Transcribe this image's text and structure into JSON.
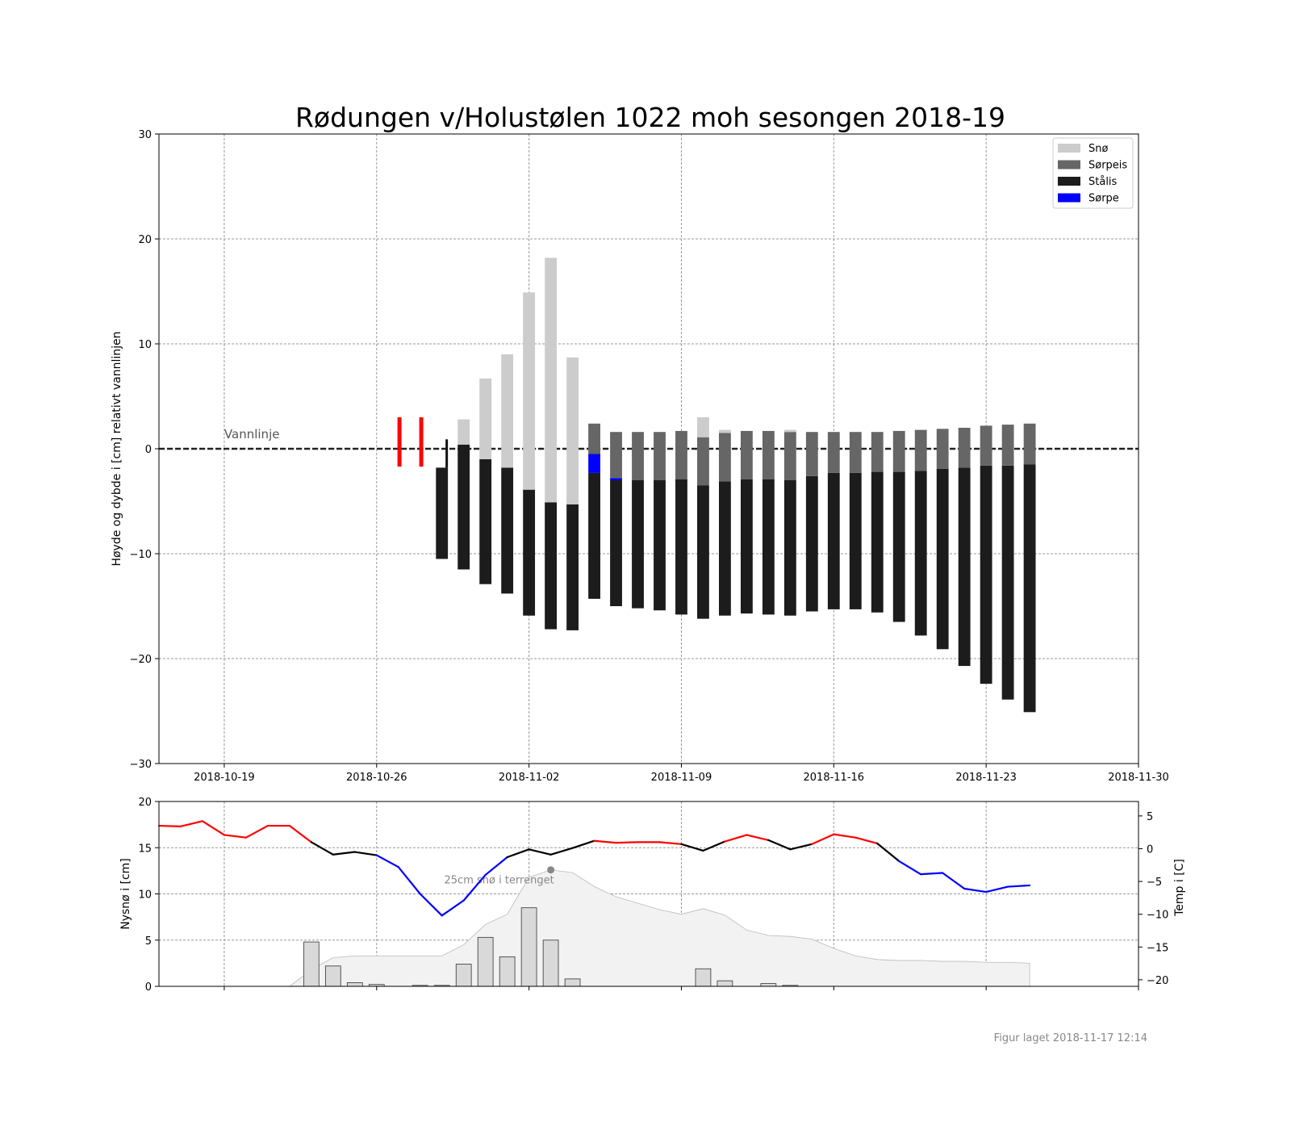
{
  "figure": {
    "title": "Rødungen v/Holustølen 1022 moh sesongen 2018-19",
    "footer": "Figur laget 2018-11-17 12:14"
  },
  "chart_data": [
    {
      "type": "bar",
      "panel": "ice",
      "ylabel": "Høyde og dybde i [cm] relativt vannlinjen",
      "ylim": [
        -30,
        30
      ],
      "yticks": [
        -30,
        -20,
        -10,
        0,
        10,
        20,
        30
      ],
      "xlim": [
        "2018-10-16",
        "2018-11-30"
      ],
      "xticks": [
        "2018-10-19",
        "2018-10-26",
        "2018-11-02",
        "2018-11-09",
        "2018-11-16",
        "2018-11-23",
        "2018-11-30"
      ],
      "grid": true,
      "legend_position": "top-right",
      "waterline_label": "Vannlinje",
      "colors": {
        "sno": "#cccccc",
        "sorpeis": "#666666",
        "stalis": "#1c1c1c",
        "sorpe": "#0000ff",
        "open_water": "#ff0000"
      },
      "legend": [
        {
          "key": "sno",
          "label": "Snø"
        },
        {
          "key": "sorpeis",
          "label": "Sørpeis"
        },
        {
          "key": "stalis",
          "label": "Stålis"
        },
        {
          "key": "sorpe",
          "label": "Sørpe"
        }
      ],
      "open_water_markers": [
        {
          "date": "2018-10-28",
          "top": 3,
          "bottom": -1.7
        },
        {
          "date": "2018-10-29",
          "top": 3,
          "bottom": -1.7
        }
      ],
      "thin_ice_markers": [
        {
          "date": "2018-10-29",
          "top": 0.9,
          "bottom": -1.8
        }
      ],
      "columns": [
        {
          "date": "2018-10-29",
          "stalis": [
            -10.5,
            -1.8
          ],
          "sorpeis": null,
          "sno": null,
          "sorpe": null
        },
        {
          "date": "2018-10-30",
          "stalis": [
            -11.5,
            0.4
          ],
          "sorpeis": null,
          "sno": [
            0.4,
            2.8
          ],
          "sorpe": null
        },
        {
          "date": "2018-10-31",
          "stalis": [
            -12.9,
            -1.0
          ],
          "sorpeis": null,
          "sno": [
            -1.0,
            6.7
          ],
          "sorpe": null
        },
        {
          "date": "2018-11-01",
          "stalis": [
            -13.8,
            -1.8
          ],
          "sorpeis": null,
          "sno": [
            -1.8,
            9.0
          ],
          "sorpe": null
        },
        {
          "date": "2018-11-02",
          "stalis": [
            -15.9,
            -3.9
          ],
          "sorpeis": null,
          "sno": [
            -3.9,
            14.9
          ],
          "sorpe": null
        },
        {
          "date": "2018-11-03",
          "stalis": [
            -17.2,
            -5.1
          ],
          "sorpeis": null,
          "sno": [
            -5.1,
            18.2
          ],
          "sorpe": null
        },
        {
          "date": "2018-11-04",
          "stalis": [
            -17.3,
            -5.3
          ],
          "sorpeis": null,
          "sno": [
            -5.3,
            8.7
          ],
          "sorpe": null
        },
        {
          "date": "2018-11-05",
          "stalis": [
            -14.3,
            -2.3
          ],
          "sorpeis": [
            -0.5,
            2.4
          ],
          "sno": null,
          "sorpe": [
            -2.3,
            -0.5
          ]
        },
        {
          "date": "2018-11-06",
          "stalis": [
            -15.0,
            -3.0
          ],
          "sorpeis": [
            -2.8,
            1.6
          ],
          "sno": null,
          "sorpe": [
            -3.0,
            -2.8
          ]
        },
        {
          "date": "2018-11-07",
          "stalis": [
            -15.2,
            -3.0
          ],
          "sorpeis": [
            -3.0,
            1.6
          ],
          "sno": null,
          "sorpe": null
        },
        {
          "date": "2018-11-08",
          "stalis": [
            -15.4,
            -3.0
          ],
          "sorpeis": [
            -3.0,
            1.6
          ],
          "sno": null,
          "sorpe": null
        },
        {
          "date": "2018-11-09",
          "stalis": [
            -15.8,
            -2.9
          ],
          "sorpeis": [
            -2.9,
            1.7
          ],
          "sno": null,
          "sorpe": null
        },
        {
          "date": "2018-11-10",
          "stalis": [
            -16.2,
            -3.5
          ],
          "sorpeis": [
            -3.5,
            1.1
          ],
          "sno": [
            1.1,
            3.0
          ],
          "sorpe": null
        },
        {
          "date": "2018-11-11",
          "stalis": [
            -15.9,
            -3.1
          ],
          "sorpeis": [
            -3.1,
            1.5
          ],
          "sno": [
            1.5,
            1.8
          ],
          "sorpe": null
        },
        {
          "date": "2018-11-12",
          "stalis": [
            -15.7,
            -2.9
          ],
          "sorpeis": [
            -2.9,
            1.7
          ],
          "sno": null,
          "sorpe": null
        },
        {
          "date": "2018-11-13",
          "stalis": [
            -15.8,
            -2.9
          ],
          "sorpeis": [
            -2.9,
            1.7
          ],
          "sno": null,
          "sorpe": null
        },
        {
          "date": "2018-11-14",
          "stalis": [
            -15.9,
            -3.0
          ],
          "sorpeis": [
            -3.0,
            1.6
          ],
          "sno": [
            1.6,
            1.8
          ],
          "sorpe": null
        },
        {
          "date": "2018-11-15",
          "stalis": [
            -15.5,
            -2.6
          ],
          "sorpeis": [
            -2.6,
            1.6
          ],
          "sno": null,
          "sorpe": null
        },
        {
          "date": "2018-11-16",
          "stalis": [
            -15.3,
            -2.3
          ],
          "sorpeis": [
            -2.3,
            1.6
          ],
          "sno": null,
          "sorpe": null
        },
        {
          "date": "2018-11-17",
          "stalis": [
            -15.3,
            -2.3
          ],
          "sorpeis": [
            -2.3,
            1.6
          ],
          "sno": null,
          "sorpe": null
        },
        {
          "date": "2018-11-18",
          "stalis": [
            -15.6,
            -2.2
          ],
          "sorpeis": [
            -2.2,
            1.6
          ],
          "sno": null,
          "sorpe": null
        },
        {
          "date": "2018-11-19",
          "stalis": [
            -16.5,
            -2.2
          ],
          "sorpeis": [
            -2.2,
            1.7
          ],
          "sno": null,
          "sorpe": null
        },
        {
          "date": "2018-11-20",
          "stalis": [
            -17.8,
            -2.1
          ],
          "sorpeis": [
            -2.1,
            1.8
          ],
          "sno": null,
          "sorpe": null
        },
        {
          "date": "2018-11-21",
          "stalis": [
            -19.1,
            -1.9
          ],
          "sorpeis": [
            -1.9,
            1.9
          ],
          "sno": null,
          "sorpe": null
        },
        {
          "date": "2018-11-22",
          "stalis": [
            -20.7,
            -1.8
          ],
          "sorpeis": [
            -1.8,
            2.0
          ],
          "sno": null,
          "sorpe": null
        },
        {
          "date": "2018-11-23",
          "stalis": [
            -22.4,
            -1.6
          ],
          "sorpeis": [
            -1.6,
            2.2
          ],
          "sno": null,
          "sorpe": null
        },
        {
          "date": "2018-11-24",
          "stalis": [
            -23.9,
            -1.6
          ],
          "sorpeis": [
            -1.6,
            2.3
          ],
          "sno": null,
          "sorpe": null
        },
        {
          "date": "2018-11-25",
          "stalis": [
            -25.1,
            -1.5
          ],
          "sorpeis": [
            -1.5,
            2.4
          ],
          "sno": null,
          "sorpe": null
        }
      ]
    },
    {
      "type": "bar",
      "panel": "weather",
      "ylabel_left": "Nysnø i [cm]",
      "ylabel_right": "Temp i [C]",
      "ylim_left": [
        0,
        20
      ],
      "yticks_left": [
        0,
        5,
        10,
        15,
        20
      ],
      "ylim_right": [
        -21,
        7.2
      ],
      "yticks_right": [
        -20,
        -15,
        -10,
        -5,
        0,
        5
      ],
      "xlim": [
        "2018-10-16",
        "2018-11-30"
      ],
      "grid": true,
      "annotation": {
        "text": "25cm snø i terrenget",
        "date": "2018-11-03",
        "value": 12.6
      },
      "new_snow": [
        {
          "date": "2018-10-23",
          "value": 4.8
        },
        {
          "date": "2018-10-24",
          "value": 2.2
        },
        {
          "date": "2018-10-25",
          "value": 0.4
        },
        {
          "date": "2018-10-26",
          "value": 0.2
        },
        {
          "date": "2018-10-28",
          "value": 0.1
        },
        {
          "date": "2018-10-29",
          "value": 0.1
        },
        {
          "date": "2018-10-30",
          "value": 2.4
        },
        {
          "date": "2018-10-31",
          "value": 5.3
        },
        {
          "date": "2018-11-01",
          "value": 3.2
        },
        {
          "date": "2018-11-02",
          "value": 8.5
        },
        {
          "date": "2018-11-03",
          "value": 5.0
        },
        {
          "date": "2018-11-04",
          "value": 0.8
        },
        {
          "date": "2018-11-10",
          "value": 1.9
        },
        {
          "date": "2018-11-11",
          "value": 0.6
        },
        {
          "date": "2018-11-13",
          "value": 0.3
        },
        {
          "date": "2018-11-14",
          "value": 0.1
        }
      ],
      "snow_depth": {
        "dates": [
          "2018-10-22",
          "2018-10-23",
          "2018-10-24",
          "2018-10-25",
          "2018-10-26",
          "2018-10-27",
          "2018-10-28",
          "2018-10-29",
          "2018-10-30",
          "2018-10-31",
          "2018-11-01",
          "2018-11-02",
          "2018-11-03",
          "2018-11-04",
          "2018-11-05",
          "2018-11-06",
          "2018-11-07",
          "2018-11-08",
          "2018-11-09",
          "2018-11-10",
          "2018-11-11",
          "2018-11-12",
          "2018-11-13",
          "2018-11-14",
          "2018-11-15",
          "2018-11-16",
          "2018-11-17",
          "2018-11-18",
          "2018-11-19",
          "2018-11-20",
          "2018-11-21",
          "2018-11-22",
          "2018-11-23",
          "2018-11-24",
          "2018-11-25"
        ],
        "values": [
          0,
          1.8,
          3.1,
          3.3,
          3.3,
          3.3,
          3.3,
          3.3,
          4.5,
          6.7,
          7.8,
          11.8,
          12.6,
          12.3,
          10.8,
          9.7,
          9.0,
          8.3,
          7.8,
          8.4,
          7.7,
          6.1,
          5.5,
          5.4,
          5.1,
          4.1,
          3.3,
          2.9,
          2.8,
          2.8,
          2.7,
          2.7,
          2.6,
          2.6,
          2.5
        ]
      },
      "temperature": {
        "dates": [
          "2018-10-16",
          "2018-10-17",
          "2018-10-18",
          "2018-10-19",
          "2018-10-20",
          "2018-10-21",
          "2018-10-22",
          "2018-10-23",
          "2018-10-24",
          "2018-10-25",
          "2018-10-26",
          "2018-10-27",
          "2018-10-28",
          "2018-10-29",
          "2018-10-30",
          "2018-10-31",
          "2018-11-01",
          "2018-11-02",
          "2018-11-03",
          "2018-11-04",
          "2018-11-05",
          "2018-11-06",
          "2018-11-07",
          "2018-11-08",
          "2018-11-09",
          "2018-11-10",
          "2018-11-11",
          "2018-11-12",
          "2018-11-13",
          "2018-11-14",
          "2018-11-15",
          "2018-11-16",
          "2018-11-17",
          "2018-11-18",
          "2018-11-19",
          "2018-11-20",
          "2018-11-21",
          "2018-11-22",
          "2018-11-23",
          "2018-11-24",
          "2018-11-25"
        ],
        "values": [
          3.5,
          3.4,
          4.2,
          2.1,
          1.7,
          3.5,
          3.5,
          1.0,
          -0.9,
          -0.5,
          -1.0,
          -2.8,
          -6.9,
          -10.2,
          -7.9,
          -4.0,
          -1.3,
          -0.1,
          -0.9,
          0.1,
          1.2,
          0.9,
          1.0,
          1.0,
          0.7,
          -0.3,
          1.1,
          2.1,
          1.3,
          -0.1,
          0.7,
          2.2,
          1.7,
          0.8,
          -1.9,
          -3.9,
          -3.7,
          -6.1,
          -6.6,
          -5.8,
          -5.6
        ],
        "colors": {
          "warm": "#ff0000",
          "cold": "#0000ff",
          "transition": "#000000"
        }
      }
    }
  ]
}
